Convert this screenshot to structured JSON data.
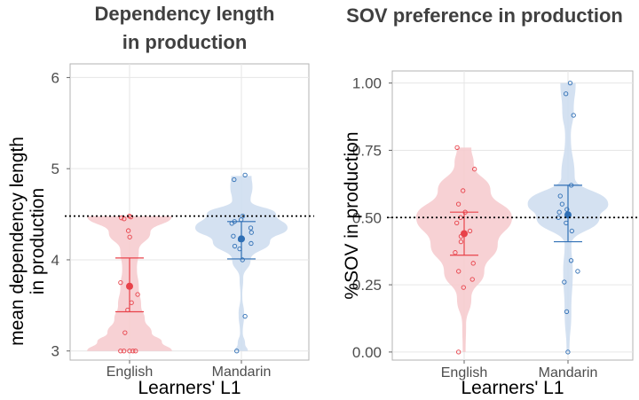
{
  "chart_data": [
    {
      "type": "violin",
      "title_lines": [
        "Dependency length",
        "in production"
      ],
      "xlabel": "Learners' L1",
      "ylabel_lines": [
        "mean dependency length",
        "in production"
      ],
      "ylim": [
        2.9,
        6.15
      ],
      "yticks": [
        3,
        4,
        5,
        6
      ],
      "ytick_labels": [
        "3",
        "4",
        "5",
        "6"
      ],
      "reference_line": 4.48,
      "grid": true,
      "categories": [
        "English",
        "Mandarin"
      ],
      "series": [
        {
          "group": "English",
          "color": "#e8424a",
          "fill": "#f6c9cd",
          "mean": 3.71,
          "ci": [
            3.43,
            4.02
          ],
          "points": [
            4.48,
            4.47,
            4.46,
            4.45,
            4.32,
            4.25,
            3.75,
            3.62,
            3.53,
            3.45,
            3.2,
            3.0,
            3.0,
            3.0,
            3.0,
            3.0
          ],
          "violin": [
            [
              3.0,
              0.92
            ],
            [
              3.1,
              0.7
            ],
            [
              3.2,
              0.48
            ],
            [
              3.35,
              0.33
            ],
            [
              3.5,
              0.25
            ],
            [
              3.7,
              0.2
            ],
            [
              3.9,
              0.16
            ],
            [
              4.1,
              0.2
            ],
            [
              4.3,
              0.45
            ],
            [
              4.48,
              0.92
            ]
          ]
        },
        {
          "group": "Mandarin",
          "color": "#2f6fb5",
          "fill": "#cddcee",
          "mean": 4.23,
          "ci": [
            4.01,
            4.42
          ],
          "points": [
            4.93,
            4.88,
            4.48,
            4.44,
            4.42,
            4.4,
            4.35,
            4.3,
            4.26,
            4.22,
            4.18,
            4.15,
            4.12,
            4.0,
            3.38,
            3.0
          ],
          "violin": [
            [
              3.0,
              0.14
            ],
            [
              3.08,
              0.08
            ],
            [
              3.2,
              0.03
            ],
            [
              3.4,
              0.06
            ],
            [
              3.6,
              0.02
            ],
            [
              3.8,
              0.04
            ],
            [
              4.0,
              0.2
            ],
            [
              4.2,
              0.62
            ],
            [
              4.35,
              1.0
            ],
            [
              4.5,
              0.75
            ],
            [
              4.65,
              0.2
            ],
            [
              4.8,
              0.24
            ],
            [
              4.92,
              0.22
            ]
          ]
        }
      ]
    },
    {
      "type": "violin",
      "title_lines": [
        "SOV preference in production"
      ],
      "xlabel": "Learners' L1",
      "ylabel_lines": [
        "%SOV in production"
      ],
      "ylim": [
        -0.03,
        1.045
      ],
      "yticks": [
        0,
        0.25,
        0.5,
        0.75,
        1
      ],
      "ytick_labels": [
        "0.00",
        "0.25",
        "0.50",
        "0.75",
        "1.00"
      ],
      "reference_line": 0.5,
      "grid": true,
      "categories": [
        "English",
        "Mandarin"
      ],
      "series": [
        {
          "group": "English",
          "color": "#e8424a",
          "fill": "#f6c9cd",
          "mean": 0.44,
          "ci": [
            0.36,
            0.52
          ],
          "points": [
            0.76,
            0.68,
            0.6,
            0.55,
            0.52,
            0.5,
            0.48,
            0.45,
            0.43,
            0.41,
            0.37,
            0.33,
            0.3,
            0.27,
            0.24,
            0.0
          ],
          "violin": [
            [
              0.0,
              0.03
            ],
            [
              0.1,
              0.04
            ],
            [
              0.2,
              0.15
            ],
            [
              0.3,
              0.42
            ],
            [
              0.4,
              0.7
            ],
            [
              0.5,
              1.0
            ],
            [
              0.6,
              0.55
            ],
            [
              0.7,
              0.2
            ],
            [
              0.76,
              0.15
            ]
          ]
        },
        {
          "group": "Mandarin",
          "color": "#2f6fb5",
          "fill": "#cddcee",
          "mean": 0.51,
          "ci": [
            0.41,
            0.62
          ],
          "points": [
            1.0,
            0.96,
            0.88,
            0.62,
            0.58,
            0.55,
            0.53,
            0.52,
            0.5,
            0.48,
            0.45,
            0.34,
            0.3,
            0.26,
            0.15,
            0.0
          ],
          "violin": [
            [
              0.0,
              0.03
            ],
            [
              0.15,
              0.07
            ],
            [
              0.3,
              0.1
            ],
            [
              0.4,
              0.07
            ],
            [
              0.5,
              0.66
            ],
            [
              0.55,
              0.84
            ],
            [
              0.65,
              0.14
            ],
            [
              0.8,
              0.06
            ],
            [
              0.9,
              0.12
            ],
            [
              1.0,
              0.16
            ]
          ]
        }
      ]
    }
  ]
}
